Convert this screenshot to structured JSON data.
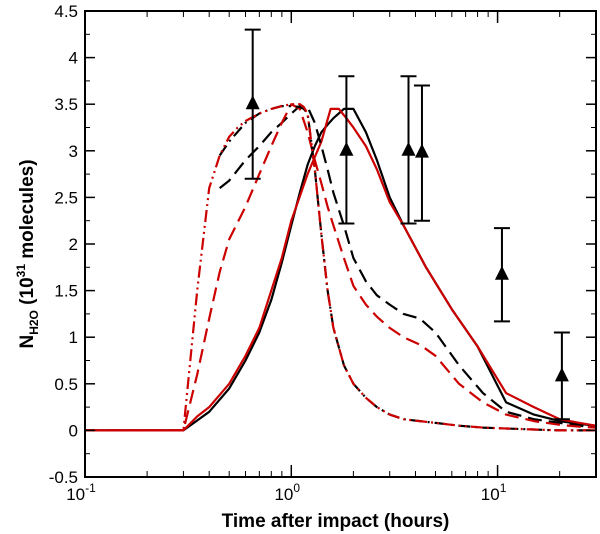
{
  "chart_data": {
    "type": "line",
    "title": "",
    "xlabel": "Time after impact (hours)",
    "ylabel": {
      "main": "N",
      "subscript": "H2O",
      "unit_open": " (10",
      "exponent": "31",
      "unit_close": " molecules)"
    },
    "xscale": "log",
    "xlim": [
      0.1,
      30
    ],
    "ylim": [
      -0.5,
      4.5
    ],
    "x_major_ticks": [
      {
        "value": 0.1,
        "base": "10",
        "exp": "-1"
      },
      {
        "value": 1,
        "base": "10",
        "exp": "0"
      },
      {
        "value": 10,
        "base": "10",
        "exp": "1"
      }
    ],
    "y_ticks": [
      {
        "value": -0.5,
        "label": "-0.5"
      },
      {
        "value": 0,
        "label": "0"
      },
      {
        "value": 0.5,
        "label": "0.5"
      },
      {
        "value": 1,
        "label": "1"
      },
      {
        "value": 1.5,
        "label": "1.5"
      },
      {
        "value": 2,
        "label": "2"
      },
      {
        "value": 2.5,
        "label": "2.5"
      },
      {
        "value": 3,
        "label": "3"
      },
      {
        "value": 3.5,
        "label": "3.5"
      },
      {
        "value": 4,
        "label": "4"
      },
      {
        "value": 4.5,
        "label": "4.5"
      }
    ],
    "series": [
      {
        "name": "black-solid",
        "color": "#000000",
        "dash": "solid",
        "x": [
          0.1,
          0.3,
          0.4,
          0.5,
          0.6,
          0.7,
          0.8,
          0.9,
          1.0,
          1.1,
          1.2,
          1.3,
          1.4,
          1.5,
          1.6,
          1.8,
          2.0,
          2.3,
          2.6,
          3.0,
          3.5,
          4.5,
          6,
          8,
          11,
          15,
          20,
          25,
          30
        ],
        "y": [
          0,
          0,
          0.2,
          0.45,
          0.75,
          1.05,
          1.4,
          1.8,
          2.2,
          2.55,
          2.85,
          3.05,
          3.2,
          3.28,
          3.35,
          3.45,
          3.45,
          3.2,
          2.9,
          2.5,
          2.2,
          1.75,
          1.3,
          0.9,
          0.3,
          0.17,
          0.1,
          0.07,
          0.05
        ]
      },
      {
        "name": "red-solid",
        "color": "#cc0000",
        "dash": "solid",
        "x": [
          0.1,
          0.3,
          0.35,
          0.4,
          0.5,
          0.6,
          0.7,
          0.8,
          0.9,
          1.0,
          1.2,
          1.4,
          1.55,
          1.7,
          1.85,
          2.0,
          2.3,
          2.6,
          3.0,
          3.5,
          4.5,
          6,
          8,
          11,
          15,
          20,
          25,
          30
        ],
        "y": [
          0,
          0,
          0.15,
          0.25,
          0.5,
          0.8,
          1.1,
          1.5,
          1.85,
          2.25,
          2.75,
          3.1,
          3.45,
          3.45,
          3.35,
          3.25,
          3.05,
          2.8,
          2.45,
          2.2,
          1.75,
          1.3,
          0.9,
          0.4,
          0.25,
          0.12,
          0.08,
          0.05
        ]
      },
      {
        "name": "black-dashed",
        "color": "#000000",
        "dash": "dashed",
        "x": [
          0.45,
          0.5,
          0.6,
          0.7,
          0.8,
          0.9,
          1.0,
          1.1,
          1.2,
          1.3,
          1.4,
          1.5,
          1.6,
          1.8,
          2.0,
          2.3,
          2.6,
          3.0,
          3.5,
          4.2,
          5.0,
          6.5,
          8.5,
          11,
          15,
          20,
          25,
          30
        ],
        "y": [
          2.6,
          2.68,
          2.9,
          3.05,
          3.2,
          3.3,
          3.4,
          3.48,
          3.47,
          3.3,
          3.05,
          2.8,
          2.55,
          2.2,
          1.85,
          1.6,
          1.45,
          1.35,
          1.25,
          1.2,
          1.05,
          0.7,
          0.4,
          0.2,
          0.12,
          0.08,
          0.05,
          0.03
        ]
      },
      {
        "name": "red-dashed",
        "color": "#cc0000",
        "dash": "dashed",
        "x": [
          0.1,
          0.3,
          0.35,
          0.4,
          0.45,
          0.5,
          0.6,
          0.7,
          0.8,
          0.9,
          1.0,
          1.1,
          1.2,
          1.3,
          1.4,
          1.5,
          1.6,
          1.8,
          2.0,
          2.3,
          2.6,
          3.0,
          3.5,
          4.2,
          5.0,
          6.5,
          8.5,
          11,
          15,
          20,
          25,
          30
        ],
        "y": [
          0,
          0,
          0.6,
          1.2,
          1.7,
          2.05,
          2.4,
          2.75,
          3.05,
          3.3,
          3.5,
          3.45,
          3.2,
          2.9,
          2.65,
          2.4,
          2.2,
          1.85,
          1.55,
          1.35,
          1.22,
          1.1,
          1.0,
          0.92,
          0.8,
          0.5,
          0.3,
          0.17,
          0.1,
          0.06,
          0.04,
          0.03
        ]
      },
      {
        "name": "black-dashdot",
        "color": "#000000",
        "dash": "dashdot",
        "x": [
          0.45,
          0.5,
          0.6,
          0.7,
          0.8,
          0.9,
          1.0,
          1.1,
          1.15,
          1.2,
          1.3,
          1.4,
          1.5,
          1.6,
          1.8,
          2.0,
          2.3,
          2.6,
          3.0,
          3.5,
          4.2,
          5.0,
          6.5,
          8.5,
          11,
          15,
          20,
          25,
          30
        ],
        "y": [
          2.95,
          3.1,
          3.3,
          3.4,
          3.45,
          3.48,
          3.48,
          3.47,
          3.45,
          3.4,
          2.8,
          2.1,
          1.5,
          1.1,
          0.7,
          0.5,
          0.35,
          0.25,
          0.17,
          0.12,
          0.1,
          0.08,
          0.05,
          0.03,
          0.02,
          0.01,
          0.0,
          0.0,
          0.0
        ]
      },
      {
        "name": "red-dashdotdot",
        "color": "#cc0000",
        "dash": "dashdotdot",
        "x": [
          0.1,
          0.3,
          0.35,
          0.4,
          0.45,
          0.5,
          0.55,
          0.6,
          0.7,
          0.8,
          0.9,
          1.0,
          1.1,
          1.15,
          1.2,
          1.3,
          1.4,
          1.5,
          1.6,
          1.8,
          2.0,
          2.3,
          2.6,
          3.0,
          3.5,
          4.2,
          5.0,
          6.5,
          8.5,
          11,
          15,
          20,
          25,
          30
        ],
        "y": [
          0,
          0,
          1.5,
          2.6,
          2.95,
          3.15,
          3.25,
          3.32,
          3.4,
          3.45,
          3.48,
          3.5,
          3.5,
          3.47,
          3.4,
          2.8,
          2.1,
          1.5,
          1.1,
          0.7,
          0.5,
          0.35,
          0.25,
          0.17,
          0.12,
          0.1,
          0.08,
          0.05,
          0.03,
          0.02,
          0.01,
          0.0,
          0.0,
          0.0
        ]
      }
    ],
    "observations": {
      "name": "observed",
      "marker": "filled-triangle",
      "color": "#000000",
      "points": [
        {
          "x": 0.65,
          "y": 3.5,
          "yerr_low": 2.7,
          "yerr_high": 4.3
        },
        {
          "x": 1.85,
          "y": 3.0,
          "yerr_low": 2.22,
          "yerr_high": 3.8
        },
        {
          "x": 3.7,
          "y": 3.0,
          "yerr_low": 2.22,
          "yerr_high": 3.8
        },
        {
          "x": 4.3,
          "y": 2.98,
          "yerr_low": 2.25,
          "yerr_high": 3.7
        },
        {
          "x": 10.5,
          "y": 1.67,
          "yerr_low": 1.17,
          "yerr_high": 2.17
        },
        {
          "x": 20.5,
          "y": 0.58,
          "yerr_low": 0.12,
          "yerr_high": 1.05
        }
      ]
    }
  }
}
